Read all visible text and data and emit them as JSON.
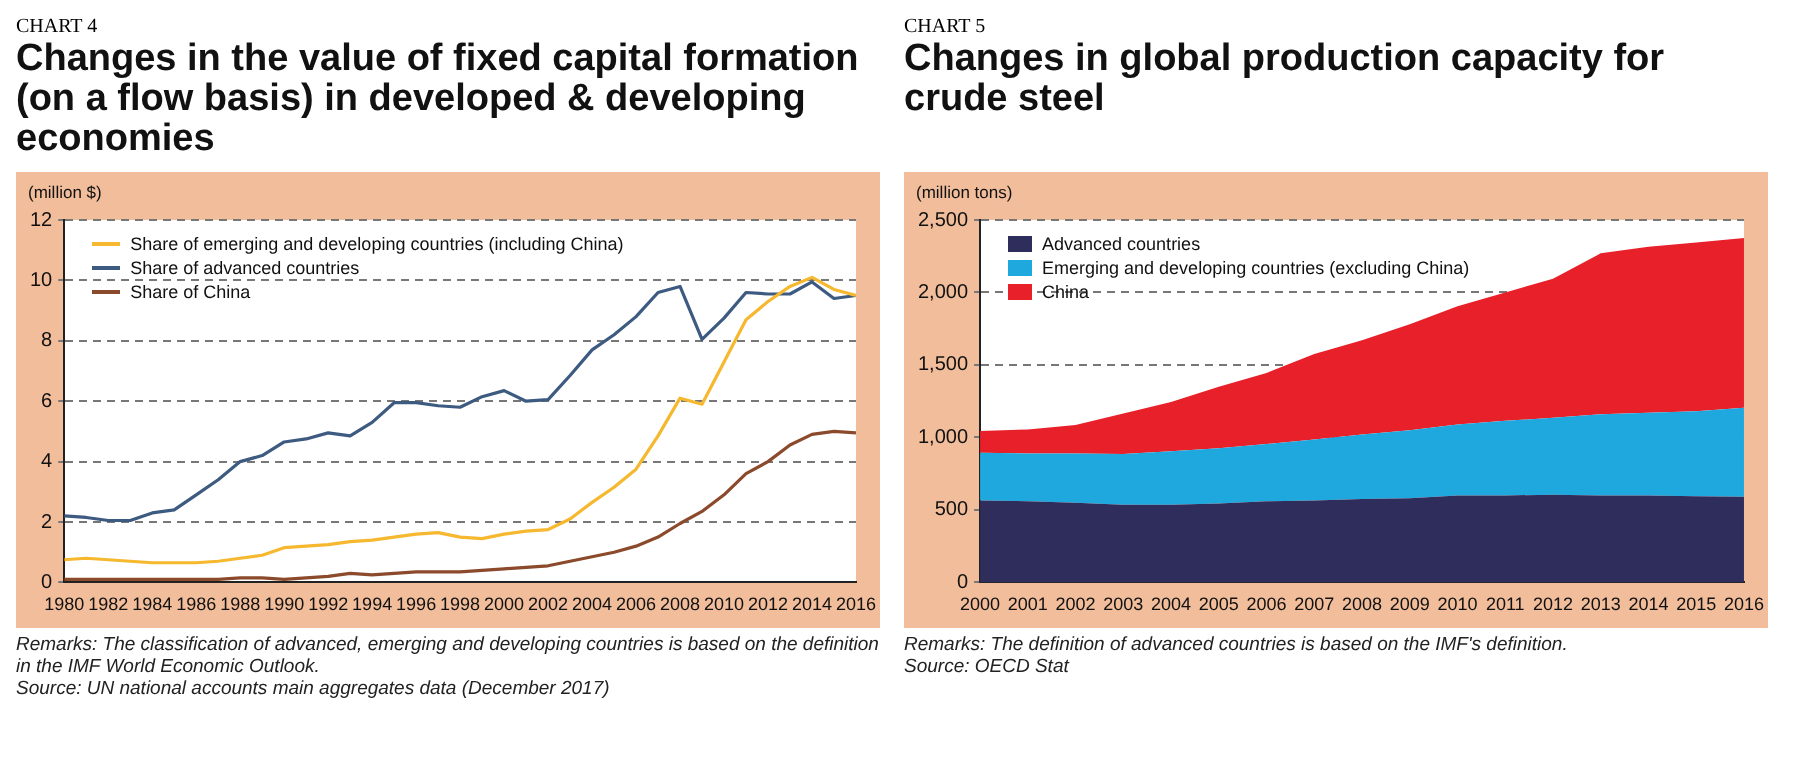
{
  "chart_data": [
    {
      "type": "line",
      "subtitle": "CHART 4",
      "title": "Changes in the value of fixed capital formation (on a flow basis) in developed & developing economies",
      "ylabel": "(million $)",
      "x": [
        1980,
        1981,
        1982,
        1983,
        1984,
        1985,
        1986,
        1987,
        1988,
        1989,
        1990,
        1991,
        1992,
        1993,
        1994,
        1995,
        1996,
        1997,
        1998,
        1999,
        2000,
        2001,
        2002,
        2003,
        2004,
        2005,
        2006,
        2007,
        2008,
        2009,
        2010,
        2011,
        2012,
        2013,
        2014,
        2015,
        2016
      ],
      "series": [
        {
          "name": "Share of emerging and developing countries (including China)",
          "color": "#f5b82e",
          "values": [
            0.75,
            0.8,
            0.75,
            0.7,
            0.65,
            0.65,
            0.65,
            0.7,
            0.8,
            0.9,
            1.15,
            1.2,
            1.25,
            1.35,
            1.4,
            1.5,
            1.6,
            1.65,
            1.5,
            1.45,
            1.6,
            1.7,
            1.75,
            2.1,
            2.65,
            3.15,
            3.75,
            4.85,
            6.1,
            5.9,
            7.3,
            8.7,
            9.3,
            9.8,
            10.1,
            9.7,
            9.5
          ]
        },
        {
          "name": "Share of advanced countries",
          "color": "#3d5a80",
          "values": [
            2.2,
            2.15,
            2.05,
            2.05,
            2.3,
            2.4,
            2.9,
            3.4,
            4.0,
            4.2,
            4.65,
            4.75,
            4.95,
            4.85,
            5.3,
            5.95,
            5.95,
            5.85,
            5.8,
            6.15,
            6.35,
            6.0,
            6.05,
            6.85,
            7.7,
            8.2,
            8.8,
            9.6,
            9.8,
            8.05,
            8.75,
            9.6,
            9.55,
            9.55,
            9.95,
            9.4,
            9.5
          ]
        },
        {
          "name": "Share of China",
          "color": "#8b4a2b",
          "values": [
            0.1,
            0.1,
            0.1,
            0.1,
            0.1,
            0.1,
            0.1,
            0.1,
            0.15,
            0.15,
            0.1,
            0.15,
            0.2,
            0.3,
            0.25,
            0.3,
            0.35,
            0.35,
            0.35,
            0.4,
            0.45,
            0.5,
            0.55,
            0.7,
            0.85,
            1.0,
            1.2,
            1.5,
            1.95,
            2.35,
            2.9,
            3.6,
            4.0,
            4.55,
            4.9,
            5.0,
            4.95
          ]
        }
      ],
      "xlim": [
        1980,
        2016
      ],
      "xticks": [
        1980,
        1982,
        1984,
        1986,
        1988,
        1990,
        1992,
        1994,
        1996,
        1998,
        2000,
        2002,
        2004,
        2006,
        2008,
        2010,
        2012,
        2014,
        2016
      ],
      "ylim": [
        0,
        12
      ],
      "yticks": [
        0,
        2,
        4,
        6,
        8,
        10,
        12
      ],
      "grid": "y",
      "legend": "top left",
      "marker": "none",
      "annotations": [
        "Remarks: The classification of advanced, emerging and developing countries is based on the definition in the IMF World Economic Outlook.",
        "Source: UN national accounts main aggregates data (December 2017)"
      ]
    },
    {
      "type": "area",
      "subtitle": "CHART 5",
      "title": "Changes in global production capacity for crude steel",
      "ylabel": "(million tons)",
      "stacked": true,
      "categories": [
        "2000",
        "2001",
        "2002",
        "2003",
        "2004",
        "2005",
        "2006",
        "2007",
        "2008",
        "2009",
        "2010",
        "2011",
        "2012",
        "2013",
        "2014",
        "2015",
        "2016"
      ],
      "series": [
        {
          "name": "Advanced countries",
          "color": "#2e2d5c",
          "values": [
            565,
            560,
            550,
            535,
            535,
            545,
            560,
            565,
            575,
            580,
            600,
            600,
            605,
            600,
            600,
            595,
            590
          ]
        },
        {
          "name": "Emerging and developing countries (excluding China)",
          "color": "#1fa8de",
          "values": [
            330,
            330,
            340,
            350,
            370,
            380,
            395,
            420,
            445,
            470,
            490,
            515,
            530,
            560,
            570,
            585,
            615
          ]
        },
        {
          "name": "China",
          "color": "#e8202a",
          "values": [
            150,
            165,
            195,
            280,
            340,
            425,
            490,
            590,
            650,
            730,
            815,
            885,
            960,
            1110,
            1145,
            1165,
            1170
          ]
        }
      ],
      "ylim": [
        0,
        2500
      ],
      "yticks": [
        0,
        500,
        {
          "value": 1000,
          "label": "1,000"
        },
        {
          "value": 1500,
          "label": "1,500"
        },
        {
          "value": 2000,
          "label": "2,000"
        },
        {
          "value": 2500,
          "label": "2,500"
        }
      ],
      "grid": "y",
      "legend": "top left",
      "marker": "none",
      "annotations": [
        "Remarks: The definition of advanced countries is based on the IMF's definition.",
        "Source: OECD Stat"
      ]
    }
  ]
}
